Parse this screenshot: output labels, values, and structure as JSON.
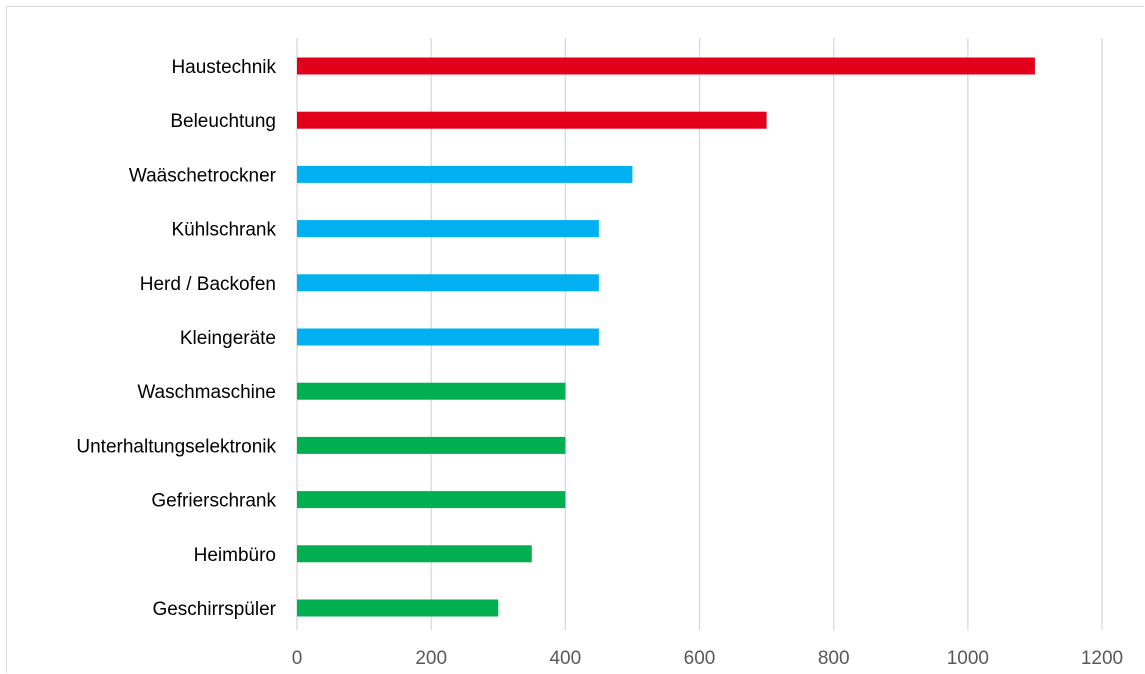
{
  "chart_data": {
    "type": "bar",
    "orientation": "horizontal",
    "categories": [
      "Haustechnik",
      "Beleuchtung",
      "Waäschetrockner",
      "Kühlschrank",
      "Herd / Backofen",
      "Kleingeräte",
      "Waschmaschine",
      "Unterhaltungselektronik",
      "Gefrierschrank",
      "Heimbüro",
      "Geschirrspüler"
    ],
    "values": [
      1100,
      700,
      500,
      450,
      450,
      450,
      400,
      400,
      400,
      350,
      300
    ],
    "bar_colors": [
      "#e2001a",
      "#e2001a",
      "#00b0f0",
      "#00b0f0",
      "#00b0f0",
      "#00b0f0",
      "#00b050",
      "#00b050",
      "#00b050",
      "#00b050",
      "#00b050"
    ],
    "xlim": [
      0,
      1200
    ],
    "xticks": [
      0,
      200,
      400,
      600,
      800,
      1000,
      1200
    ],
    "grid": true,
    "title": "",
    "xlabel": "",
    "ylabel": ""
  }
}
